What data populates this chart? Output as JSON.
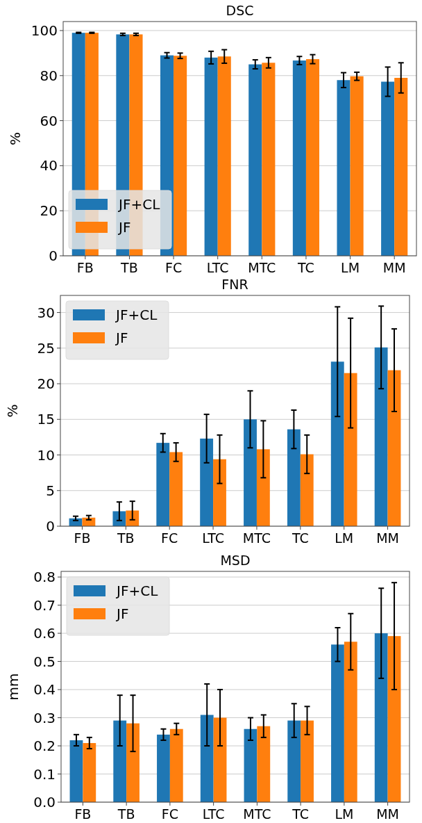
{
  "chart_data": [
    {
      "type": "bar",
      "title": "DSC",
      "ylabel": "%",
      "categories": [
        "FB",
        "TB",
        "FC",
        "LTC",
        "MTC",
        "TC",
        "LM",
        "MM"
      ],
      "series": [
        {
          "name": "JF+CL",
          "color": "#1f77b4",
          "values": [
            99,
            98.3,
            89,
            88,
            85,
            86.7,
            78,
            77.3
          ],
          "errors": [
            0.2,
            0.5,
            1.2,
            2.8,
            2,
            1.8,
            3.3,
            6.5
          ]
        },
        {
          "name": "JF",
          "color": "#ff7f0e",
          "values": [
            99,
            98.3,
            88.8,
            88.5,
            85.7,
            87.3,
            79.7,
            79
          ],
          "errors": [
            0.2,
            0.5,
            1.2,
            3,
            2.3,
            2,
            1.8,
            6.7
          ]
        }
      ],
      "ylim": [
        0,
        104
      ],
      "yticks": [
        0,
        20,
        40,
        60,
        80,
        100
      ],
      "grid": "y",
      "legend": "bottom left"
    },
    {
      "type": "bar",
      "title": "FNR",
      "ylabel": "%",
      "categories": [
        "FB",
        "TB",
        "FC",
        "LTC",
        "MTC",
        "TC",
        "LM",
        "MM"
      ],
      "series": [
        {
          "name": "JF+CL",
          "color": "#1f77b4",
          "values": [
            1.1,
            2.1,
            11.7,
            12.3,
            15,
            13.6,
            23.1,
            25.1
          ],
          "errors": [
            0.3,
            1.3,
            1.3,
            3.4,
            4,
            2.7,
            7.7,
            5.8
          ]
        },
        {
          "name": "JF",
          "color": "#ff7f0e",
          "values": [
            1.2,
            2.2,
            10.4,
            9.4,
            10.8,
            10.1,
            21.5,
            21.9
          ],
          "errors": [
            0.3,
            1.3,
            1.3,
            3.4,
            4,
            2.7,
            7.7,
            5.8
          ]
        }
      ],
      "ylim": [
        0,
        32.4
      ],
      "yticks": [
        0,
        5,
        10,
        15,
        20,
        25,
        30
      ],
      "grid": "y",
      "legend": "top left"
    },
    {
      "type": "bar",
      "title": "MSD",
      "ylabel": "mm",
      "categories": [
        "FB",
        "TB",
        "FC",
        "LTC",
        "MTC",
        "TC",
        "LM",
        "MM"
      ],
      "series": [
        {
          "name": "JF+CL",
          "color": "#1f77b4",
          "values": [
            0.22,
            0.29,
            0.24,
            0.31,
            0.26,
            0.29,
            0.56,
            0.6
          ],
          "errors": [
            0.02,
            0.09,
            0.02,
            0.11,
            0.04,
            0.06,
            0.06,
            0.16
          ]
        },
        {
          "name": "JF",
          "color": "#ff7f0e",
          "values": [
            0.21,
            0.28,
            0.26,
            0.3,
            0.27,
            0.29,
            0.57,
            0.59
          ],
          "errors": [
            0.02,
            0.1,
            0.02,
            0.1,
            0.04,
            0.05,
            0.1,
            0.19
          ]
        }
      ],
      "ylim": [
        0,
        0.82
      ],
      "yticks": [
        {
          "value": 0,
          "label": "0.0"
        },
        0.1,
        0.2,
        0.3,
        0.4,
        0.5,
        0.6,
        0.7,
        0.8
      ],
      "grid": "y",
      "legend": "top left"
    }
  ]
}
